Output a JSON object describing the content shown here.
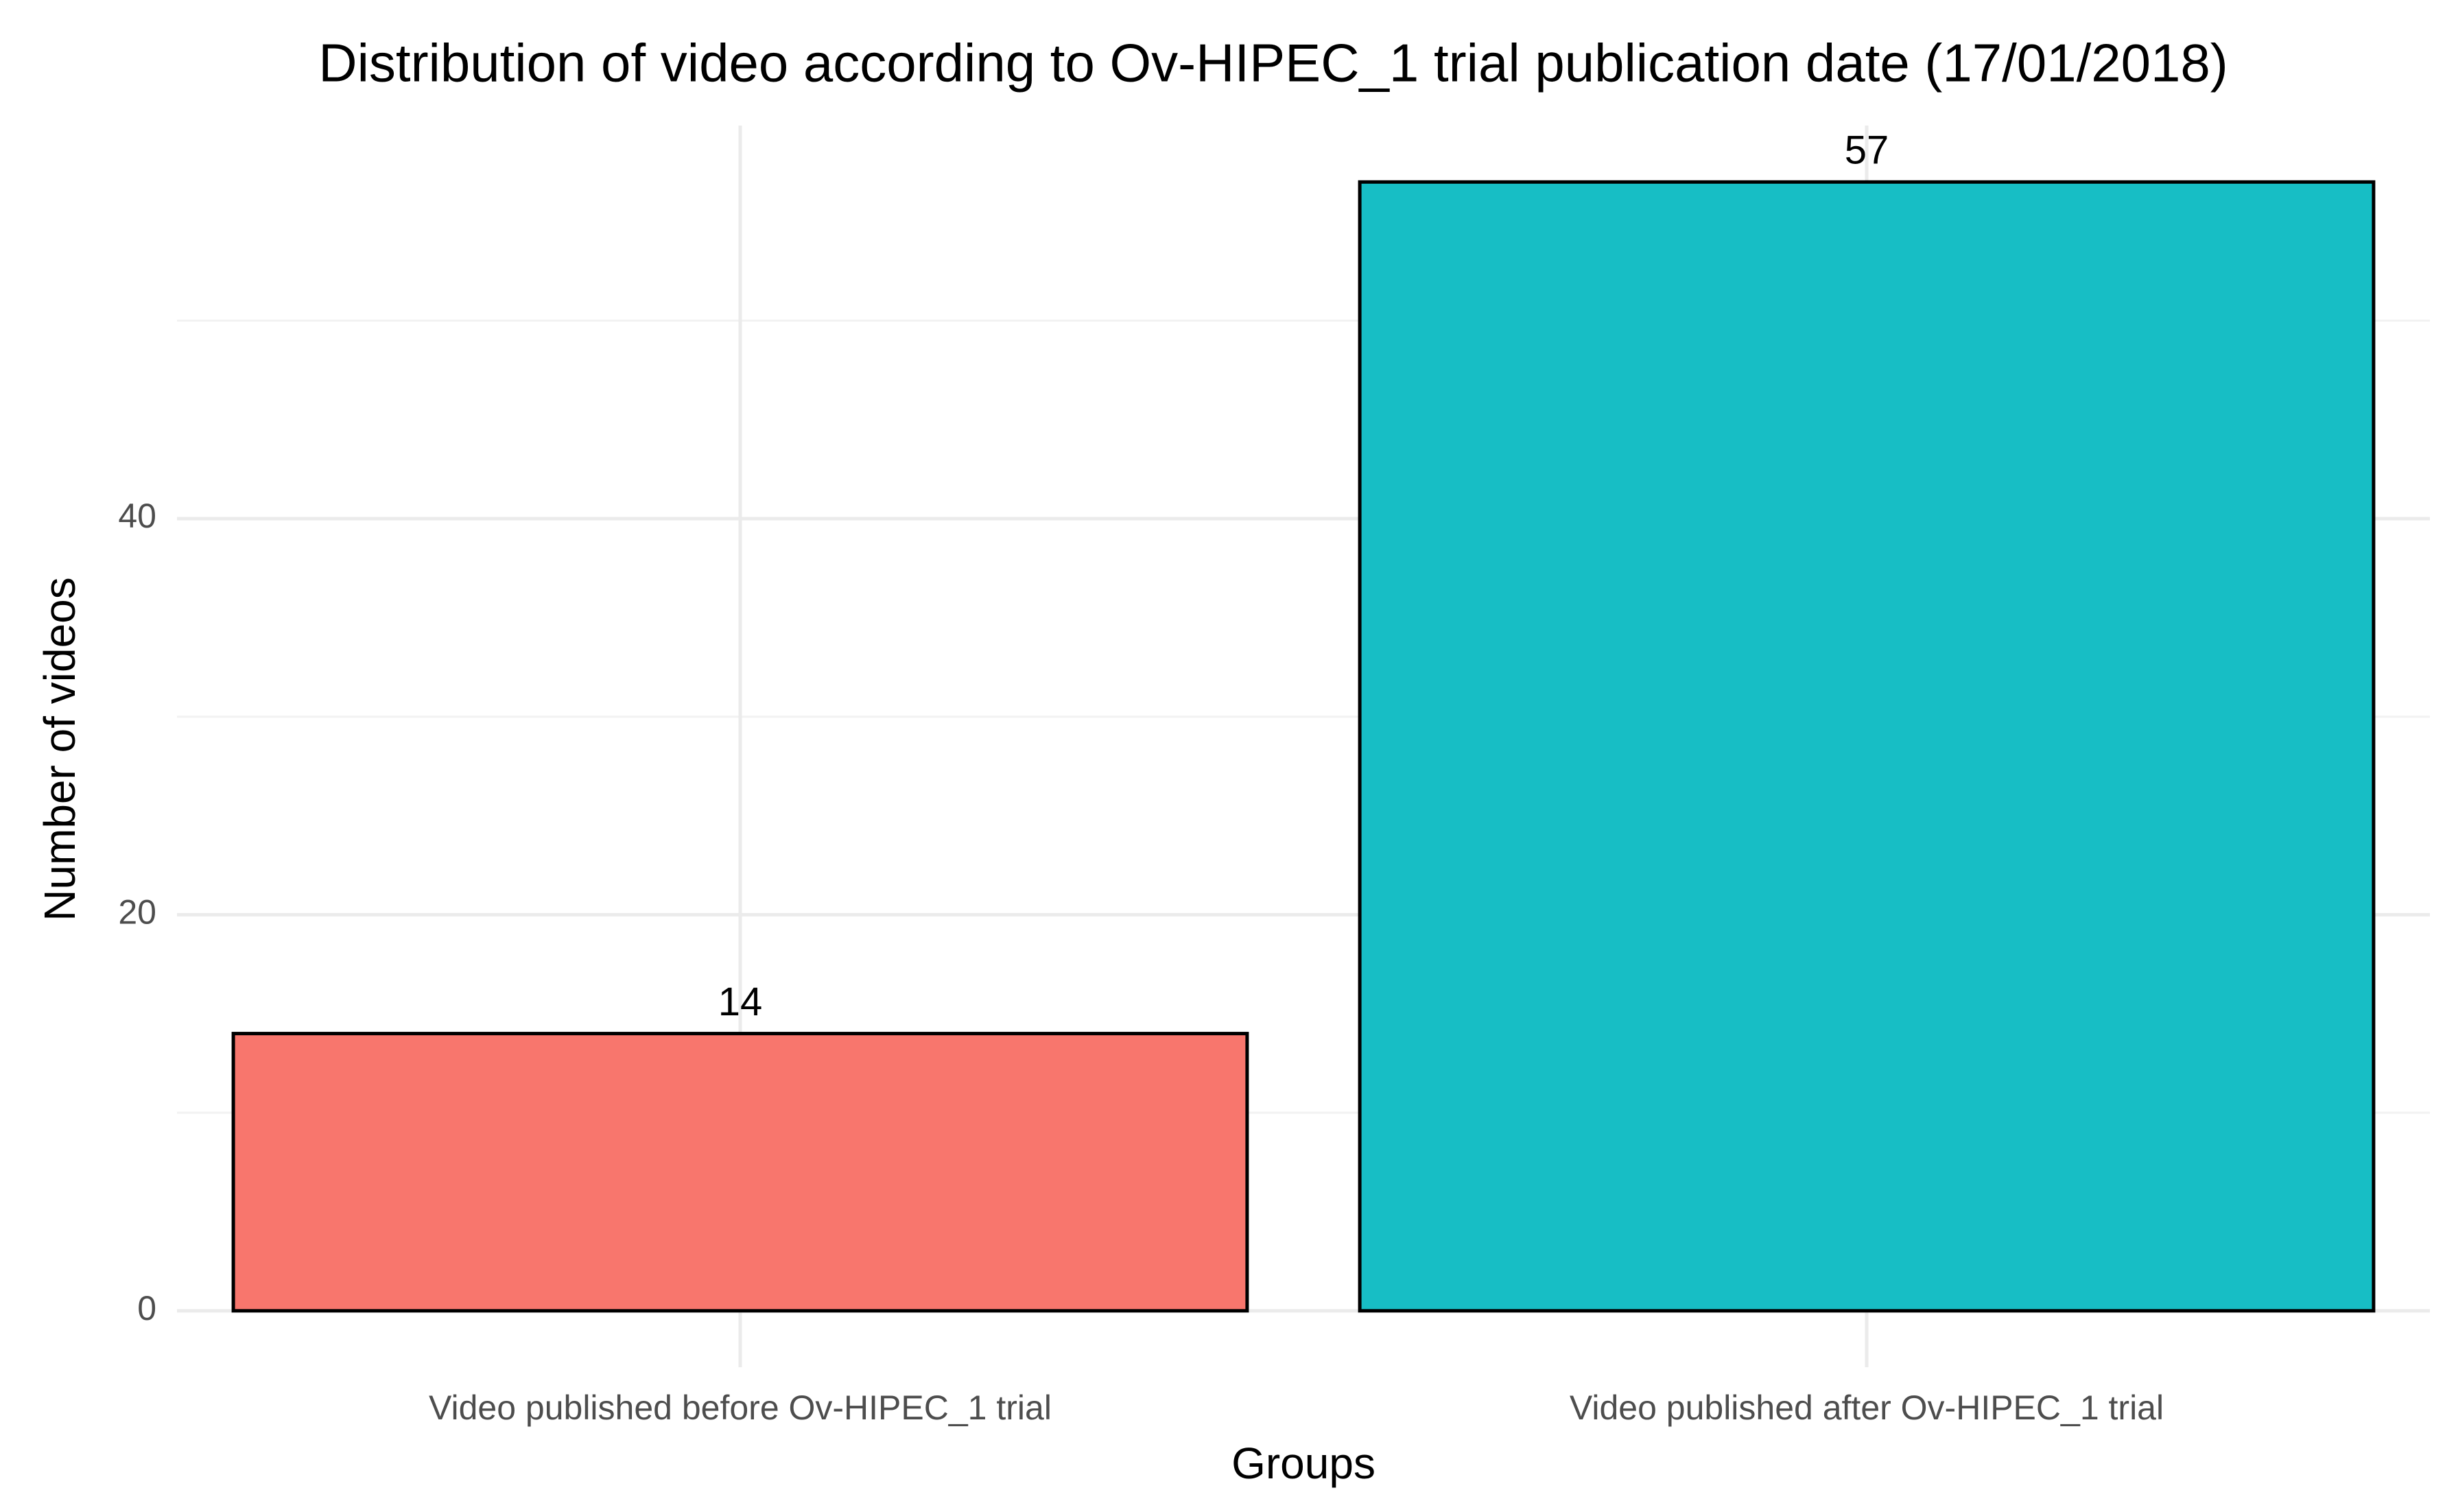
{
  "chart_data": {
    "type": "bar",
    "title": "Distribution of video according to Ov-HIPEC_1 trial publication date (17/01/2018)",
    "x_label": "Groups",
    "y_label": "Number of videos",
    "categories": [
      "Video published before Ov-HIPEC_1 trial",
      "Video published after Ov-HIPEC_1 trial"
    ],
    "values": [
      14,
      57
    ],
    "colors": [
      "#F8766D",
      "#17BEC5"
    ],
    "ylim": [
      -2.85,
      59.85
    ],
    "yticks": [
      0,
      20,
      40
    ],
    "minor_yticks": [
      10,
      30,
      50
    ],
    "grid": true
  }
}
